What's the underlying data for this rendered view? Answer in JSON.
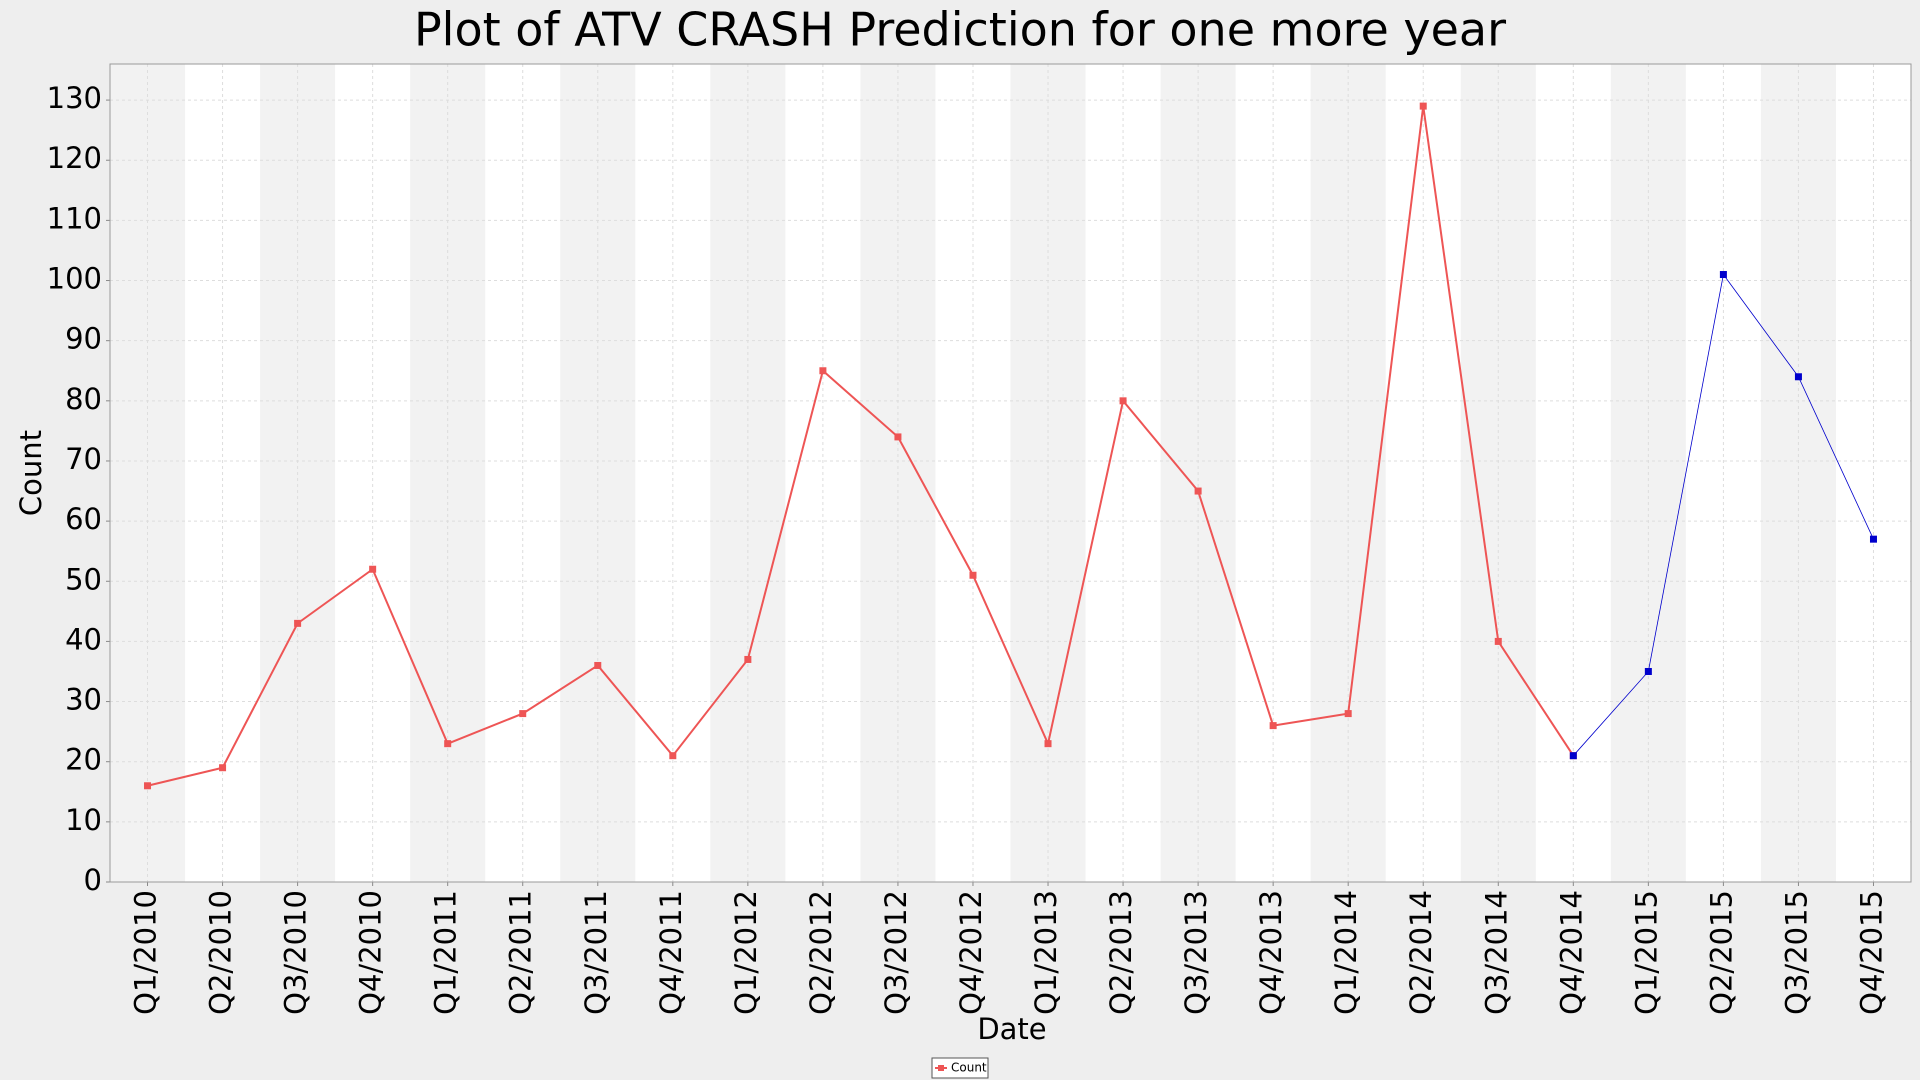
{
  "chart_data": {
    "type": "line",
    "title": "Plot of ATV CRASH Prediction for one more year",
    "xlabel": "Date",
    "ylabel": "Count",
    "categories": [
      "Q1/2010",
      "Q2/2010",
      "Q3/2010",
      "Q4/2010",
      "Q1/2011",
      "Q2/2011",
      "Q3/2011",
      "Q4/2011",
      "Q1/2012",
      "Q2/2012",
      "Q3/2012",
      "Q4/2012",
      "Q1/2013",
      "Q2/2013",
      "Q3/2013",
      "Q4/2013",
      "Q1/2014",
      "Q2/2014",
      "Q3/2014",
      "Q4/2014",
      "Q1/2015",
      "Q2/2015",
      "Q3/2015",
      "Q4/2015"
    ],
    "series": [
      {
        "name": "Count",
        "color": "#ee5555",
        "values": [
          16,
          19,
          43,
          52,
          23,
          28,
          36,
          21,
          37,
          85,
          74,
          51,
          23,
          80,
          65,
          26,
          28,
          129,
          40,
          21,
          null,
          null,
          null,
          null
        ]
      },
      {
        "color": "#0000cc",
        "values": [
          null,
          null,
          null,
          null,
          null,
          null,
          null,
          null,
          null,
          null,
          null,
          null,
          null,
          null,
          null,
          null,
          null,
          null,
          null,
          21,
          35,
          101,
          84,
          57
        ]
      }
    ],
    "ylim": [
      0,
      136
    ],
    "yticks": [
      0,
      10,
      20,
      30,
      40,
      50,
      60,
      70,
      80,
      90,
      100,
      110,
      120,
      130
    ],
    "grid": true,
    "legend": "bottom"
  }
}
